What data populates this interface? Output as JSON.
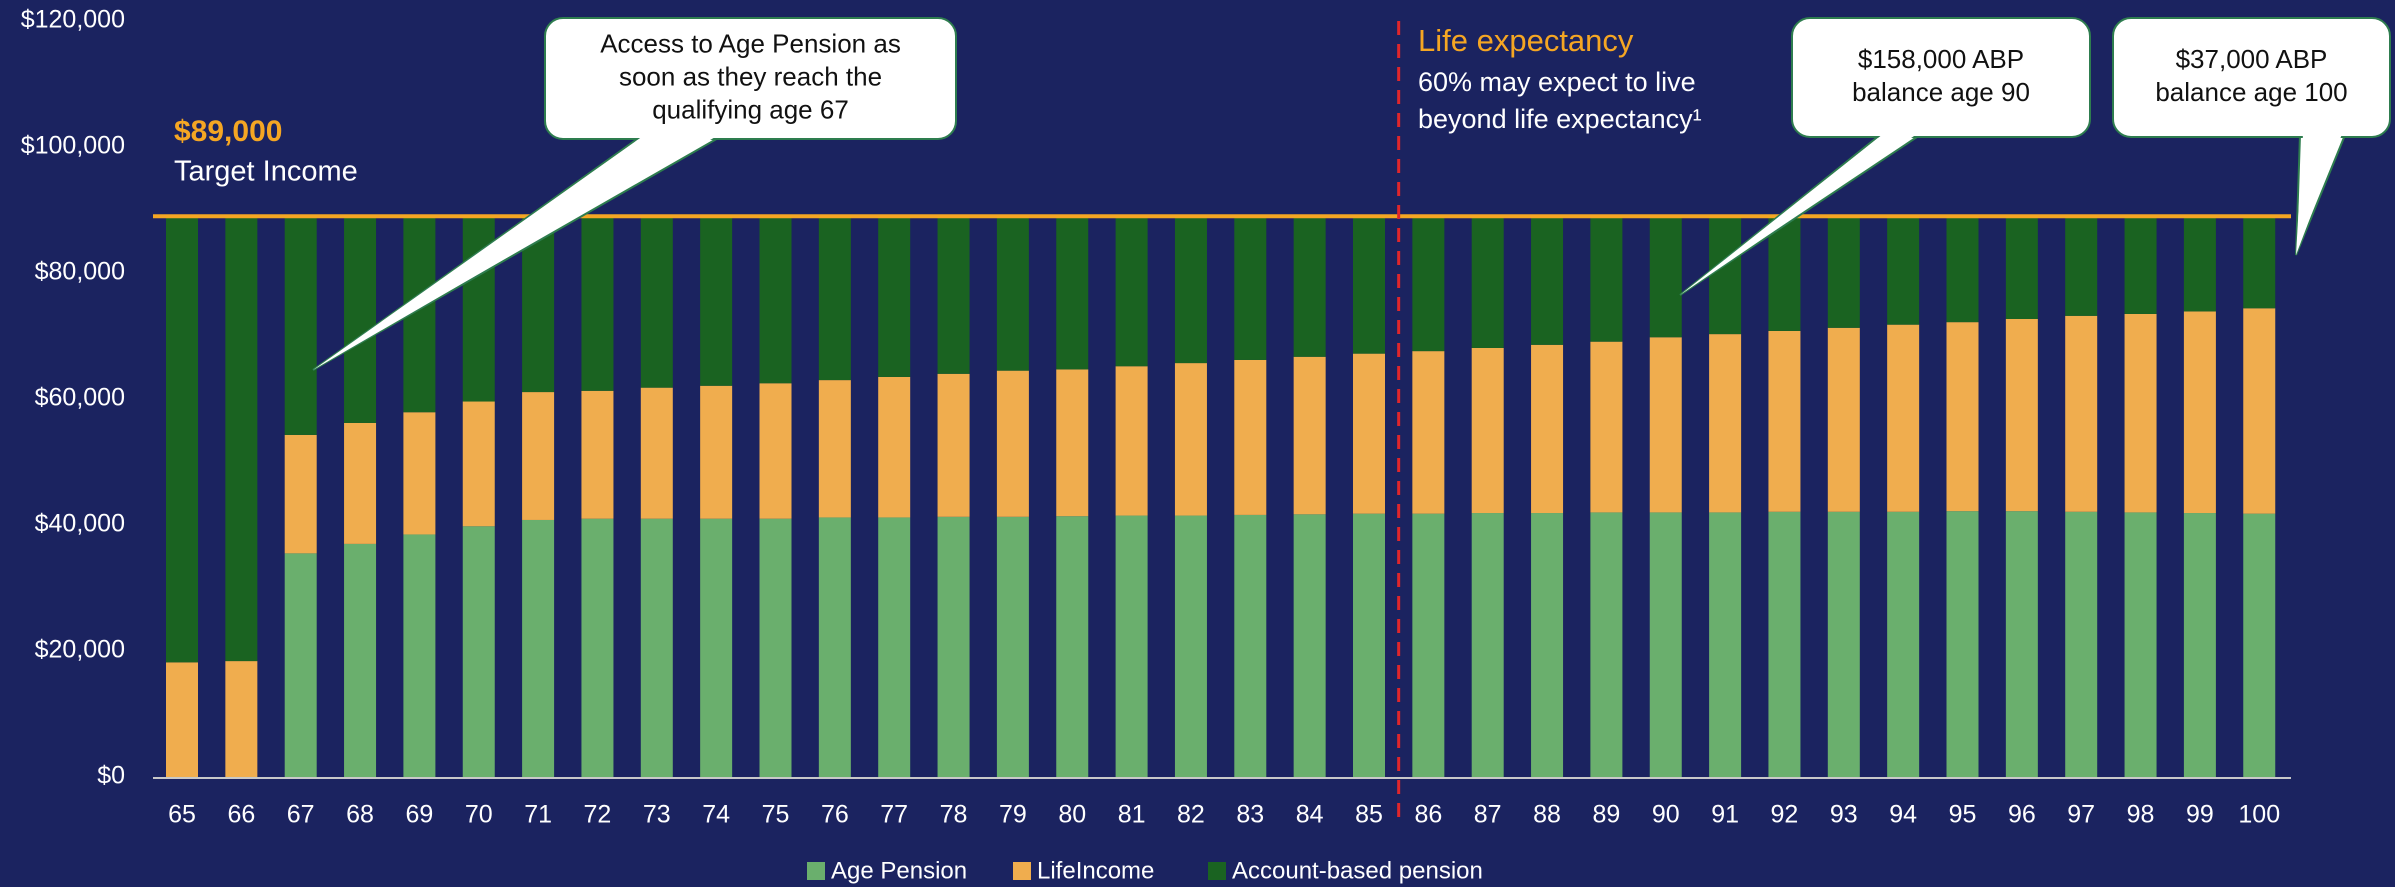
{
  "chart_data": {
    "type": "stacked_bar",
    "categories": [
      "65",
      "66",
      "67",
      "68",
      "69",
      "70",
      "71",
      "72",
      "73",
      "74",
      "75",
      "76",
      "77",
      "78",
      "79",
      "80",
      "81",
      "82",
      "83",
      "84",
      "85",
      "86",
      "87",
      "88",
      "89",
      "90",
      "91",
      "92",
      "93",
      "94",
      "95",
      "96",
      "97",
      "98",
      "99",
      "100"
    ],
    "series": [
      {
        "name": "Age Pension",
        "color": "#6aaf6d",
        "values": [
          0,
          0,
          35500,
          37000,
          38500,
          39800,
          40800,
          41000,
          41000,
          41000,
          41000,
          41200,
          41200,
          41300,
          41300,
          41400,
          41500,
          41500,
          41600,
          41700,
          41800,
          41800,
          41900,
          41900,
          42000,
          42000,
          42000,
          42100,
          42100,
          42100,
          42200,
          42200,
          42100,
          42000,
          41900,
          41800
        ]
      },
      {
        "name": "LifeIncome",
        "color": "#f0ad4e",
        "values": [
          18200,
          18400,
          18800,
          19200,
          19400,
          19800,
          20300,
          20300,
          20800,
          21100,
          21500,
          21800,
          22300,
          22700,
          23200,
          23300,
          23700,
          24200,
          24600,
          25000,
          25400,
          25800,
          26200,
          26700,
          27100,
          27800,
          28300,
          28700,
          29200,
          29700,
          30000,
          30500,
          31100,
          31500,
          32000,
          32600
        ]
      },
      {
        "name": "Account-based pension",
        "color": "#1a6321",
        "values": [
          70800,
          70600,
          34700,
          32800,
          31100,
          29400,
          27900,
          27700,
          27200,
          26900,
          26500,
          26000,
          25500,
          25000,
          24500,
          24300,
          23800,
          23300,
          22800,
          22300,
          21800,
          21400,
          20900,
          20400,
          19900,
          19200,
          18700,
          18200,
          17700,
          17200,
          16800,
          16300,
          15800,
          15500,
          15100,
          14600
        ]
      }
    ],
    "ylim": [
      0,
      120000
    ],
    "yticks": [
      {
        "value": 0,
        "label": "$0"
      },
      {
        "value": 20000,
        "label": "$20,000"
      },
      {
        "value": 40000,
        "label": "$40,000"
      },
      {
        "value": 60000,
        "label": "$60,000"
      },
      {
        "value": 80000,
        "label": "$80,000"
      },
      {
        "value": 100000,
        "label": "$100,000"
      },
      {
        "value": 120000,
        "label": "$120,000"
      }
    ],
    "target": {
      "value": 89000,
      "label": "$89,000",
      "text": "Target Income",
      "color": "#f5a623"
    },
    "life_expectancy": {
      "title": "Life expectancy",
      "lines": [
        "60% may expect to live",
        "beyond life expectancy¹"
      ]
    },
    "callouts": [
      {
        "lines": [
          "Access to Age Pension as",
          "soon as they reach the",
          "qualifying age 67"
        ]
      },
      {
        "lines": [
          "$158,000 ABP",
          "balance age 90"
        ]
      },
      {
        "lines": [
          "$37,000 ABP",
          "balance age 100"
        ]
      }
    ]
  }
}
